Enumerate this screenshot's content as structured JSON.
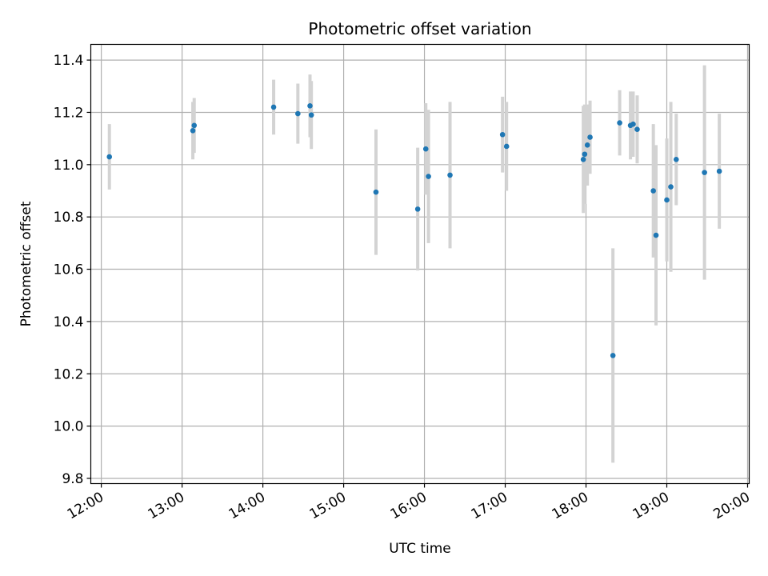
{
  "chart_data": {
    "type": "scatter",
    "title": "Photometric offset variation",
    "xlabel": "UTC time",
    "ylabel": "Photometric offset",
    "xlim": [
      11.87,
      20.02
    ],
    "ylim": [
      9.78,
      11.46
    ],
    "x_ticks": [
      {
        "value": 12,
        "label": "12:00"
      },
      {
        "value": 13,
        "label": "13:00"
      },
      {
        "value": 14,
        "label": "14:00"
      },
      {
        "value": 15,
        "label": "15:00"
      },
      {
        "value": 16,
        "label": "16:00"
      },
      {
        "value": 17,
        "label": "17:00"
      },
      {
        "value": 18,
        "label": "18:00"
      },
      {
        "value": 19,
        "label": "19:00"
      },
      {
        "value": 20,
        "label": "20:00"
      }
    ],
    "y_ticks": [
      {
        "value": 9.8,
        "label": "9.8"
      },
      {
        "value": 10.0,
        "label": "10.0"
      },
      {
        "value": 10.2,
        "label": "10.2"
      },
      {
        "value": 10.4,
        "label": "10.4"
      },
      {
        "value": 10.6,
        "label": "10.6"
      },
      {
        "value": 10.8,
        "label": "10.8"
      },
      {
        "value": 11.0,
        "label": "11.0"
      },
      {
        "value": 11.2,
        "label": "11.2"
      },
      {
        "value": 11.4,
        "label": "11.4"
      }
    ],
    "grid": true,
    "point_color": "#1f77b4",
    "errorbar_color": "#d3d3d3",
    "points": [
      {
        "x": "12:06",
        "y": 11.03,
        "err": 0.125
      },
      {
        "x": "13:08",
        "y": 11.13,
        "err": 0.11
      },
      {
        "x": "13:09",
        "y": 11.15,
        "err": 0.105
      },
      {
        "x": "14:08",
        "y": 11.22,
        "err": 0.105
      },
      {
        "x": "14:26",
        "y": 11.195,
        "err": 0.115
      },
      {
        "x": "14:35",
        "y": 11.225,
        "err": 0.12
      },
      {
        "x": "14:36",
        "y": 11.19,
        "err": 0.13
      },
      {
        "x": "15:24",
        "y": 10.895,
        "err": 0.24
      },
      {
        "x": "15:55",
        "y": 10.83,
        "err": 0.235
      },
      {
        "x": "16:01",
        "y": 11.06,
        "err": 0.175
      },
      {
        "x": "16:03",
        "y": 10.955,
        "err": 0.255
      },
      {
        "x": "16:19",
        "y": 10.96,
        "err": 0.28
      },
      {
        "x": "16:58",
        "y": 11.115,
        "err": 0.145
      },
      {
        "x": "17:01",
        "y": 11.07,
        "err": 0.17
      },
      {
        "x": "17:58",
        "y": 11.02,
        "err": 0.205
      },
      {
        "x": "17:59",
        "y": 11.04,
        "err": 0.19
      },
      {
        "x": "18:01",
        "y": 11.075,
        "err": 0.155
      },
      {
        "x": "18:03",
        "y": 11.105,
        "err": 0.14
      },
      {
        "x": "18:20",
        "y": 10.27,
        "err": 0.41
      },
      {
        "x": "18:25",
        "y": 11.16,
        "err": 0.125
      },
      {
        "x": "18:33",
        "y": 11.15,
        "err": 0.13
      },
      {
        "x": "18:35",
        "y": 11.155,
        "err": 0.125
      },
      {
        "x": "18:38",
        "y": 11.135,
        "err": 0.13
      },
      {
        "x": "18:50",
        "y": 10.9,
        "err": 0.255
      },
      {
        "x": "18:52",
        "y": 10.73,
        "err": 0.345
      },
      {
        "x": "19:00",
        "y": 10.865,
        "err": 0.235
      },
      {
        "x": "19:03",
        "y": 10.915,
        "err": 0.325
      },
      {
        "x": "19:07",
        "y": 11.02,
        "err": 0.175
      },
      {
        "x": "19:28",
        "y": 10.97,
        "err": 0.41
      },
      {
        "x": "19:39",
        "y": 10.975,
        "err": 0.22
      }
    ]
  }
}
